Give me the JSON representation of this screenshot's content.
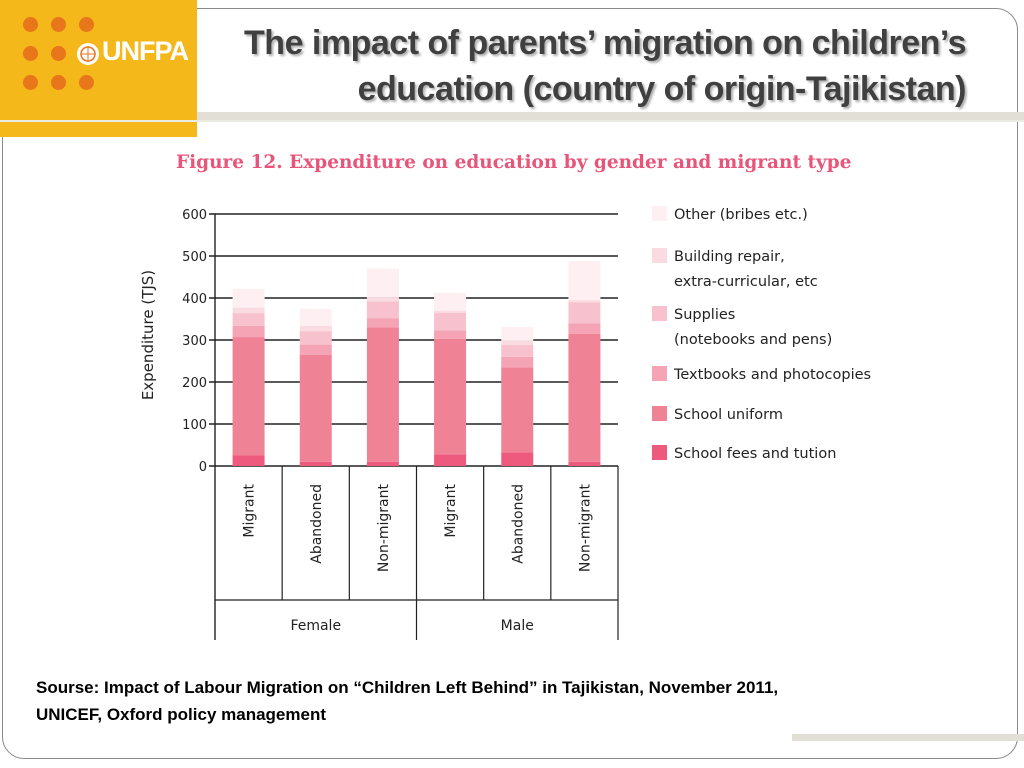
{
  "slide": {
    "logo_text": "UNFPA",
    "title_line1": "The impact of parents’ migration on children’s",
    "title_line2": "education (country of origin-Tajikistan)",
    "figure_title": "Figure 12. Expenditure on education by gender and migrant type",
    "source_line1": "Sourse: Impact of Labour Migration on “Children Left Behind” in Tajikistan, November 2011,",
    "source_line2": "UNICEF, Oxford policy management"
  },
  "colors": {
    "logo_bg": "#f5b81a",
    "logo_dots": "#e8761a",
    "figure_title": "#e8557a"
  },
  "chart_data": {
    "type": "bar",
    "stacked": true,
    "title": "Figure 12. Expenditure on education by gender and migrant type",
    "ylabel": "Expenditure (TJS)",
    "ylim": [
      0,
      600
    ],
    "yticks": [
      "600",
      "500",
      "400",
      "300",
      "200",
      "100",
      "0"
    ],
    "grid": true,
    "legend_position": "right",
    "groups": [
      "Female",
      "Male"
    ],
    "categories": [
      "Migrant",
      "Abandoned",
      "Non-migrant",
      "Migrant",
      "Abandoned",
      "Non-migrant"
    ],
    "series": [
      {
        "name": "School fees and tution",
        "color": "#ee5a7e",
        "values": [
          25,
          10,
          10,
          28,
          32,
          10
        ]
      },
      {
        "name": "School uniform",
        "color": "#f08296",
        "values": [
          282,
          255,
          320,
          275,
          203,
          305
        ]
      },
      {
        "name": "Textbooks and photocopies",
        "color": "#f4a4b4",
        "values": [
          27,
          24,
          22,
          20,
          25,
          25
        ]
      },
      {
        "name": "Supplies\n(notebooks and pens)",
        "color": "#f7c2cd",
        "values": [
          30,
          32,
          40,
          42,
          28,
          50
        ]
      },
      {
        "name": "Building repair,\nextra-curricular, etc",
        "color": "#fadbe2",
        "values": [
          13,
          13,
          10,
          5,
          10,
          5
        ]
      },
      {
        "name": "Other (bribes etc.)",
        "color": "#fdeff2",
        "values": [
          45,
          40,
          68,
          42,
          33,
          93
        ]
      }
    ]
  }
}
